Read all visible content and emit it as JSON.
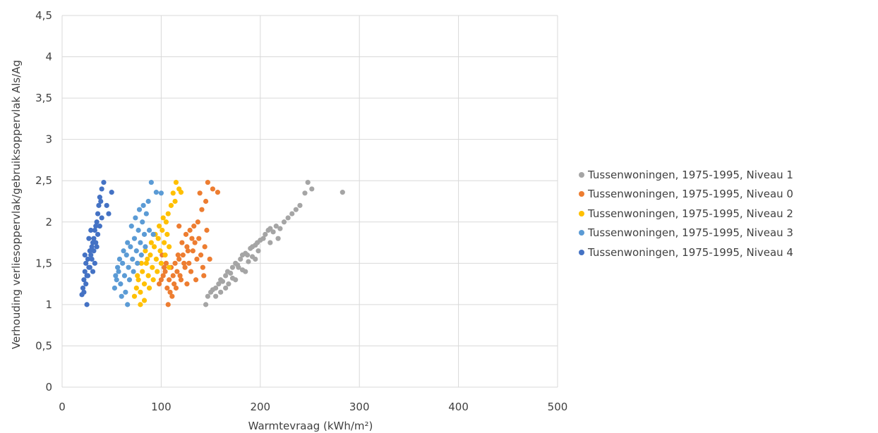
{
  "chart_data": {
    "type": "scatter",
    "xlabel": "Warmtevraag (kWh/m²)",
    "ylabel": "Verhouding verliesoppervlak/gebruiksoppervlak Als/Ag",
    "xlim": [
      0,
      500
    ],
    "ylim": [
      0,
      4.5
    ],
    "x_ticks": [
      "0",
      "100",
      "200",
      "300",
      "400",
      "500"
    ],
    "y_ticks": [
      "0",
      "0,5",
      "1",
      "1,5",
      "2",
      "2,5",
      "3",
      "3,5",
      "4",
      "4,5"
    ],
    "grid": true,
    "legend_position": "right",
    "series": [
      {
        "name": "Tussenwoningen, 1975-1995, Niveau 1",
        "color": "#a5a5a5",
        "points": [
          [
            145,
            1.0
          ],
          [
            147,
            1.1
          ],
          [
            150,
            1.15
          ],
          [
            152,
            1.18
          ],
          [
            155,
            1.2
          ],
          [
            158,
            1.25
          ],
          [
            160,
            1.3
          ],
          [
            162,
            1.28
          ],
          [
            165,
            1.35
          ],
          [
            167,
            1.4
          ],
          [
            170,
            1.38
          ],
          [
            172,
            1.45
          ],
          [
            175,
            1.5
          ],
          [
            177,
            1.48
          ],
          [
            180,
            1.55
          ],
          [
            182,
            1.6
          ],
          [
            185,
            1.62
          ],
          [
            187,
            1.6
          ],
          [
            190,
            1.68
          ],
          [
            192,
            1.7
          ],
          [
            195,
            1.72
          ],
          [
            197,
            1.75
          ],
          [
            200,
            1.78
          ],
          [
            203,
            1.8
          ],
          [
            205,
            1.85
          ],
          [
            208,
            1.9
          ],
          [
            210,
            1.92
          ],
          [
            213,
            1.88
          ],
          [
            216,
            1.95
          ],
          [
            220,
            1.92
          ],
          [
            224,
            2.0
          ],
          [
            228,
            2.05
          ],
          [
            232,
            2.1
          ],
          [
            236,
            2.15
          ],
          [
            240,
            2.2
          ],
          [
            245,
            2.35
          ],
          [
            248,
            2.48
          ],
          [
            252,
            2.4
          ],
          [
            283,
            2.36
          ],
          [
            155,
            1.1
          ],
          [
            165,
            1.2
          ],
          [
            175,
            1.3
          ],
          [
            185,
            1.4
          ],
          [
            195,
            1.55
          ],
          [
            168,
            1.25
          ],
          [
            178,
            1.45
          ],
          [
            188,
            1.52
          ],
          [
            198,
            1.65
          ],
          [
            160,
            1.15
          ],
          [
            172,
            1.32
          ],
          [
            182,
            1.42
          ],
          [
            192,
            1.58
          ],
          [
            210,
            1.75
          ],
          [
            218,
            1.8
          ]
        ]
      },
      {
        "name": "Tussenwoningen, 1975-1995, Niveau 0",
        "color": "#ed7d31",
        "points": [
          [
            98,
            1.25
          ],
          [
            100,
            1.3
          ],
          [
            102,
            1.35
          ],
          [
            104,
            1.4
          ],
          [
            106,
            1.2
          ],
          [
            108,
            1.3
          ],
          [
            110,
            1.45
          ],
          [
            112,
            1.35
          ],
          [
            114,
            1.5
          ],
          [
            116,
            1.4
          ],
          [
            118,
            1.55
          ],
          [
            120,
            1.3
          ],
          [
            122,
            1.6
          ],
          [
            124,
            1.45
          ],
          [
            126,
            1.7
          ],
          [
            128,
            1.5
          ],
          [
            130,
            1.4
          ],
          [
            132,
            1.65
          ],
          [
            134,
            1.75
          ],
          [
            136,
            1.55
          ],
          [
            138,
            1.8
          ],
          [
            140,
            1.6
          ],
          [
            142,
            1.45
          ],
          [
            144,
            1.7
          ],
          [
            146,
            1.9
          ],
          [
            105,
            1.5
          ],
          [
            109,
            1.15
          ],
          [
            113,
            1.25
          ],
          [
            117,
            1.6
          ],
          [
            121,
            1.75
          ],
          [
            125,
            1.85
          ],
          [
            129,
            1.9
          ],
          [
            133,
            1.95
          ],
          [
            137,
            2.0
          ],
          [
            141,
            2.15
          ],
          [
            145,
            2.25
          ],
          [
            139,
            2.35
          ],
          [
            147,
            2.48
          ],
          [
            152,
            2.4
          ],
          [
            157,
            2.36
          ],
          [
            107,
            1.0
          ],
          [
            111,
            1.1
          ],
          [
            115,
            1.2
          ],
          [
            119,
            1.35
          ],
          [
            123,
            1.5
          ],
          [
            127,
            1.65
          ],
          [
            131,
            1.8
          ],
          [
            135,
            1.3
          ],
          [
            103,
            1.45
          ],
          [
            101,
            1.6
          ],
          [
            143,
            1.35
          ],
          [
            149,
            1.55
          ],
          [
            118,
            1.95
          ],
          [
            126,
            1.25
          ]
        ]
      },
      {
        "name": "Tussenwoningen, 1975-1995, Niveau 2",
        "color": "#ffc000",
        "points": [
          [
            73,
            1.1
          ],
          [
            75,
            1.2
          ],
          [
            77,
            1.3
          ],
          [
            79,
            1.15
          ],
          [
            81,
            1.4
          ],
          [
            83,
            1.25
          ],
          [
            85,
            1.5
          ],
          [
            87,
            1.35
          ],
          [
            89,
            1.6
          ],
          [
            91,
            1.45
          ],
          [
            93,
            1.7
          ],
          [
            95,
            1.55
          ],
          [
            97,
            1.8
          ],
          [
            99,
            1.65
          ],
          [
            101,
            1.9
          ],
          [
            103,
            1.75
          ],
          [
            105,
            2.0
          ],
          [
            107,
            2.1
          ],
          [
            110,
            2.2
          ],
          [
            112,
            2.35
          ],
          [
            115,
            2.48
          ],
          [
            118,
            2.4
          ],
          [
            120,
            2.36
          ],
          [
            79,
            1.0
          ],
          [
            83,
            1.05
          ],
          [
            88,
            1.2
          ],
          [
            92,
            1.3
          ],
          [
            96,
            1.4
          ],
          [
            100,
            1.5
          ],
          [
            104,
            1.6
          ],
          [
            108,
            1.7
          ],
          [
            86,
            1.55
          ],
          [
            90,
            1.75
          ],
          [
            94,
            1.85
          ],
          [
            98,
            1.95
          ],
          [
            102,
            2.05
          ],
          [
            76,
            1.35
          ],
          [
            80,
            1.5
          ],
          [
            84,
            1.65
          ],
          [
            106,
            1.85
          ],
          [
            114,
            2.25
          ],
          [
            108,
            1.45
          ]
        ]
      },
      {
        "name": "Tussenwoningen, 1975-1995, Niveau 3",
        "color": "#5b9bd5",
        "points": [
          [
            53,
            1.2
          ],
          [
            55,
            1.3
          ],
          [
            57,
            1.4
          ],
          [
            59,
            1.25
          ],
          [
            61,
            1.5
          ],
          [
            63,
            1.35
          ],
          [
            65,
            1.6
          ],
          [
            67,
            1.45
          ],
          [
            69,
            1.7
          ],
          [
            71,
            1.55
          ],
          [
            73,
            1.8
          ],
          [
            75,
            1.65
          ],
          [
            77,
            1.9
          ],
          [
            79,
            1.75
          ],
          [
            81,
            2.0
          ],
          [
            83,
            1.85
          ],
          [
            85,
            2.1
          ],
          [
            87,
            2.25
          ],
          [
            90,
            2.48
          ],
          [
            95,
            2.36
          ],
          [
            100,
            2.35
          ],
          [
            66,
            1.0
          ],
          [
            60,
            1.1
          ],
          [
            64,
            1.15
          ],
          [
            68,
            1.3
          ],
          [
            72,
            1.4
          ],
          [
            76,
            1.5
          ],
          [
            80,
            1.6
          ],
          [
            84,
            1.7
          ],
          [
            58,
            1.55
          ],
          [
            62,
            1.65
          ],
          [
            70,
            1.95
          ],
          [
            74,
            2.05
          ],
          [
            78,
            2.15
          ],
          [
            82,
            2.2
          ],
          [
            56,
            1.45
          ],
          [
            54,
            1.35
          ],
          [
            66,
            1.75
          ],
          [
            88,
            1.9
          ],
          [
            92,
            1.85
          ]
        ]
      },
      {
        "name": "Tussenwoningen, 1975-1995, Niveau 4",
        "color": "#4472c4",
        "points": [
          [
            20,
            1.12
          ],
          [
            21,
            1.2
          ],
          [
            22,
            1.3
          ],
          [
            23,
            1.4
          ],
          [
            24,
            1.5
          ],
          [
            25,
            1.35
          ],
          [
            26,
            1.55
          ],
          [
            27,
            1.45
          ],
          [
            28,
            1.65
          ],
          [
            29,
            1.6
          ],
          [
            30,
            1.7
          ],
          [
            31,
            1.75
          ],
          [
            32,
            1.8
          ],
          [
            33,
            1.9
          ],
          [
            34,
            1.95
          ],
          [
            35,
            2.0
          ],
          [
            36,
            2.1
          ],
          [
            37,
            2.2
          ],
          [
            38,
            2.3
          ],
          [
            40,
            2.4
          ],
          [
            42,
            2.48
          ],
          [
            45,
            2.2
          ],
          [
            47,
            2.1
          ],
          [
            50,
            2.36
          ],
          [
            25,
            1.0
          ],
          [
            22,
            1.15
          ],
          [
            24,
            1.25
          ],
          [
            26,
            1.35
          ],
          [
            28,
            1.45
          ],
          [
            30,
            1.55
          ],
          [
            32,
            1.65
          ],
          [
            34,
            1.75
          ],
          [
            23,
            1.6
          ],
          [
            27,
            1.8
          ],
          [
            29,
            1.9
          ],
          [
            31,
            1.4
          ],
          [
            33,
            1.5
          ],
          [
            36,
            1.85
          ],
          [
            38,
            1.95
          ],
          [
            40,
            2.05
          ],
          [
            35,
            1.7
          ],
          [
            39,
            2.25
          ]
        ]
      }
    ]
  }
}
